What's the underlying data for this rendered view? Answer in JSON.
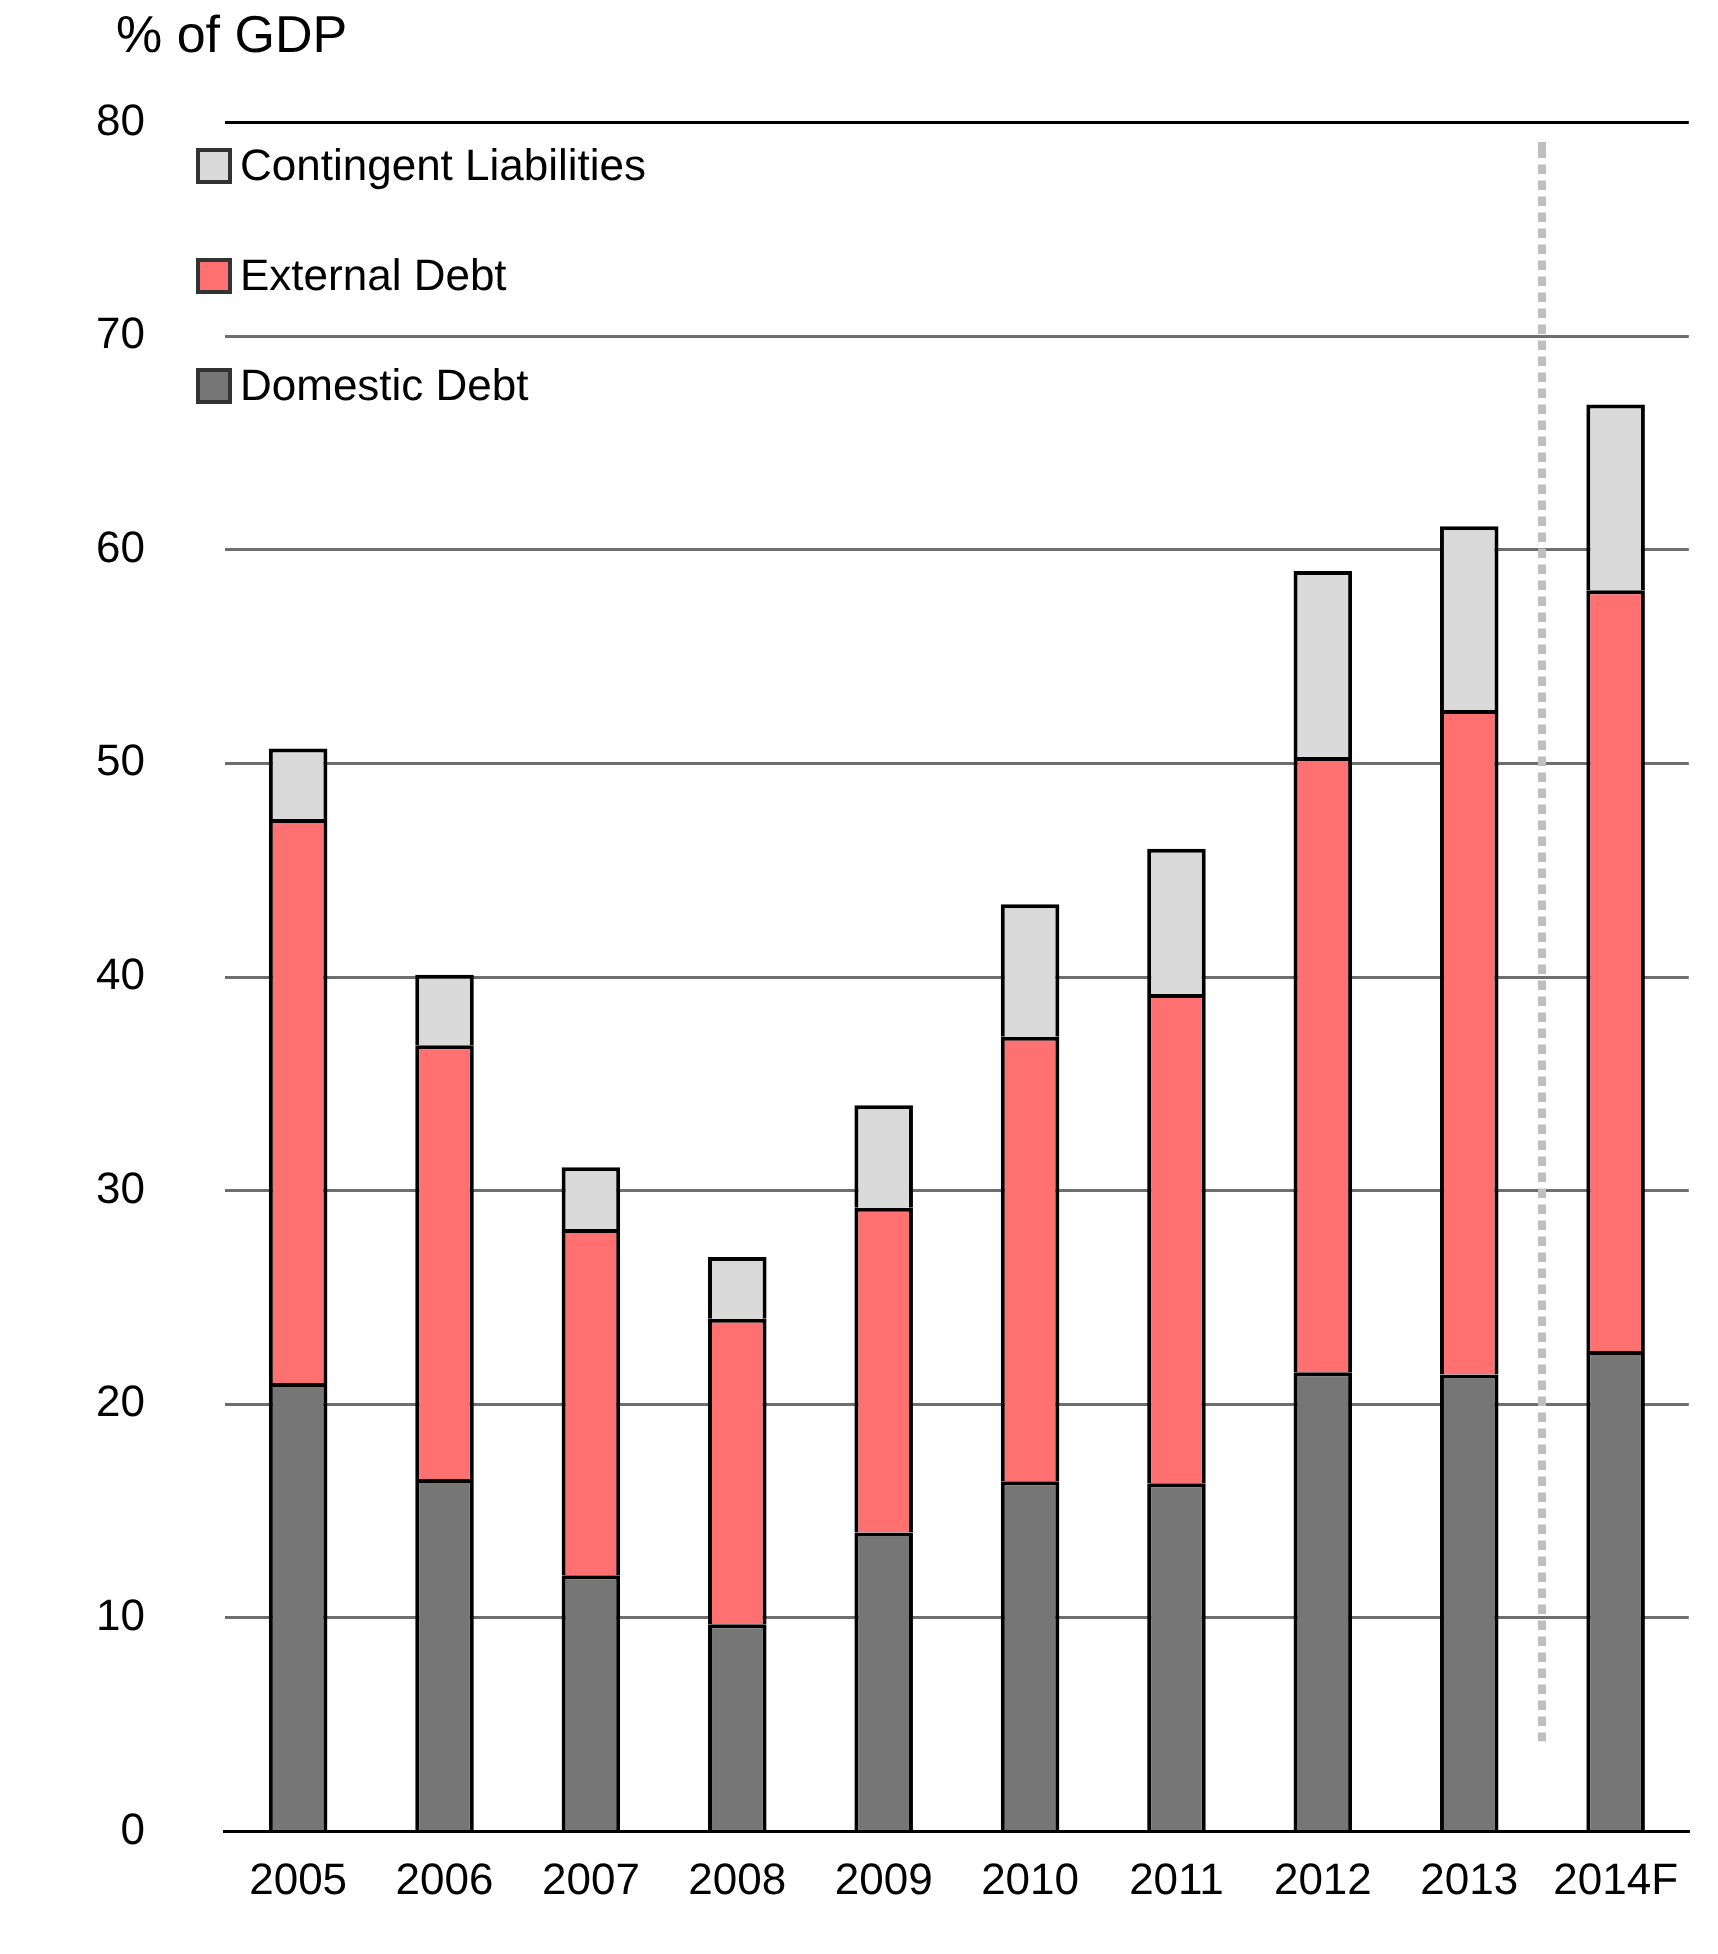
{
  "chart_data": {
    "type": "bar",
    "ylabel": "% of GDP",
    "categories": [
      "2005",
      "2006",
      "2007",
      "2008",
      "2009",
      "2010",
      "2011",
      "2012",
      "2013",
      "2014F"
    ],
    "stacked": true,
    "series": [
      {
        "name": "Domestic Debt",
        "color": "#767676",
        "values": [
          21.0,
          16.5,
          12.0,
          9.7,
          14.0,
          16.4,
          16.3,
          21.5,
          21.4,
          22.5
        ]
      },
      {
        "name": "External Debt",
        "color": "#ff7171",
        "values": [
          26.4,
          20.3,
          16.2,
          14.3,
          15.2,
          20.8,
          22.9,
          28.8,
          31.1,
          35.6
        ]
      },
      {
        "name": "Contingent Liabilities",
        "color": "#dadada",
        "values": [
          3.3,
          3.3,
          2.9,
          2.9,
          4.8,
          6.2,
          6.8,
          8.7,
          8.6,
          8.7
        ]
      }
    ],
    "ylim": [
      0,
      80
    ],
    "yticks": [
      0,
      10,
      20,
      30,
      40,
      50,
      60,
      70,
      80
    ],
    "grid": "y",
    "legend": "top left"
  }
}
